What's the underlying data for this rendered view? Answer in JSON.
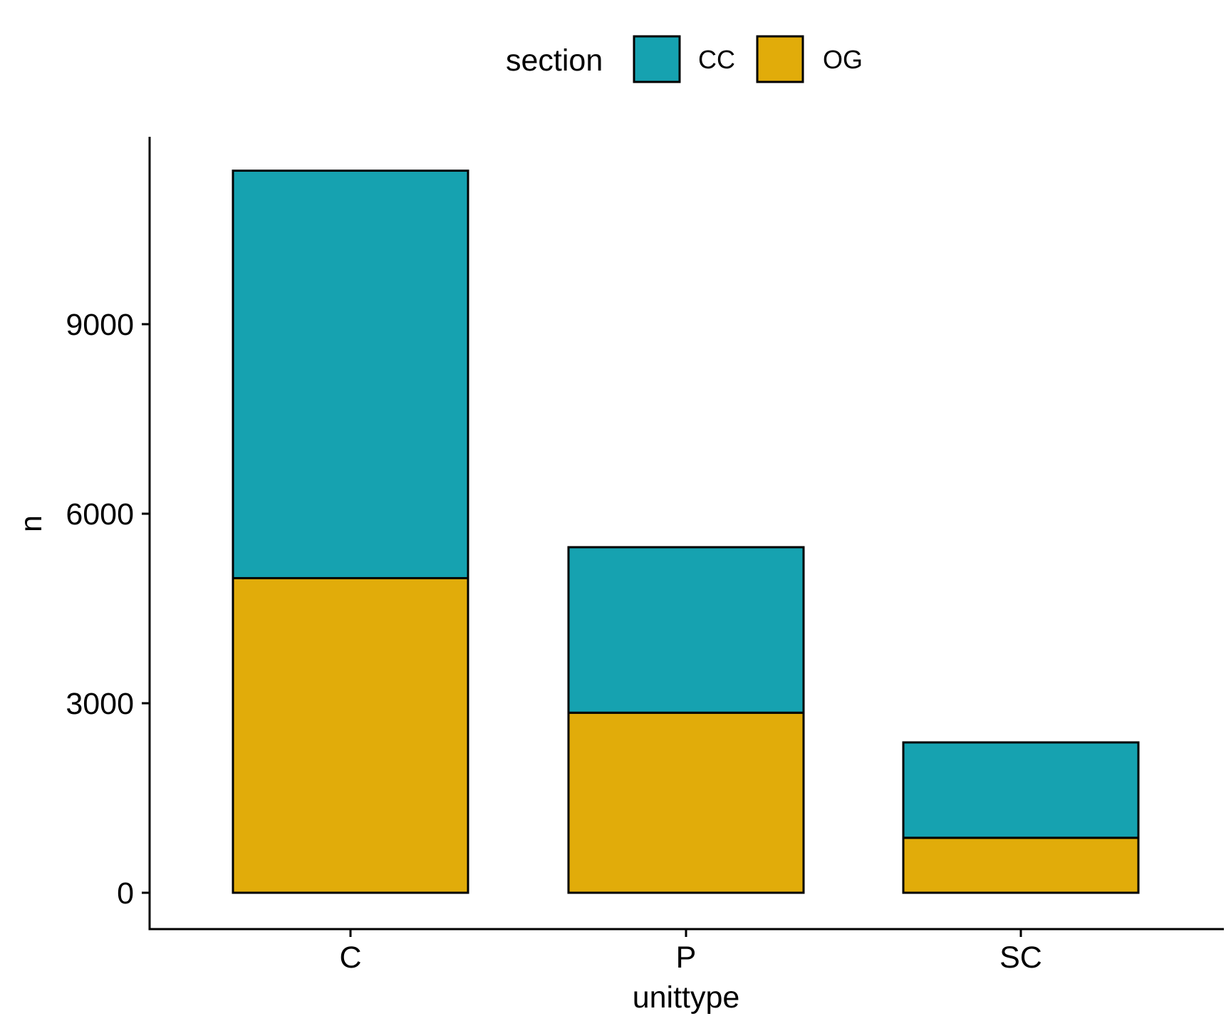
{
  "chart_data": {
    "type": "bar",
    "stacked": true,
    "categories": [
      "C",
      "P",
      "SC"
    ],
    "series": [
      {
        "name": "OG",
        "values": [
          4980,
          2850,
          870
        ],
        "color": "#E1AC0A"
      },
      {
        "name": "CC",
        "values": [
          6450,
          2620,
          1510
        ],
        "color": "#16A2B0"
      }
    ],
    "title": "",
    "xlabel": "unittype",
    "ylabel": "n",
    "ylim": [
      0,
      12000
    ],
    "yticks": [
      "0",
      "3000",
      "6000",
      "9000"
    ],
    "legend": {
      "title": "section",
      "position": "top",
      "items": [
        {
          "label": "CC",
          "color": "#16A2B0"
        },
        {
          "label": "OG",
          "color": "#E1AC0A"
        }
      ]
    },
    "grid": false
  }
}
